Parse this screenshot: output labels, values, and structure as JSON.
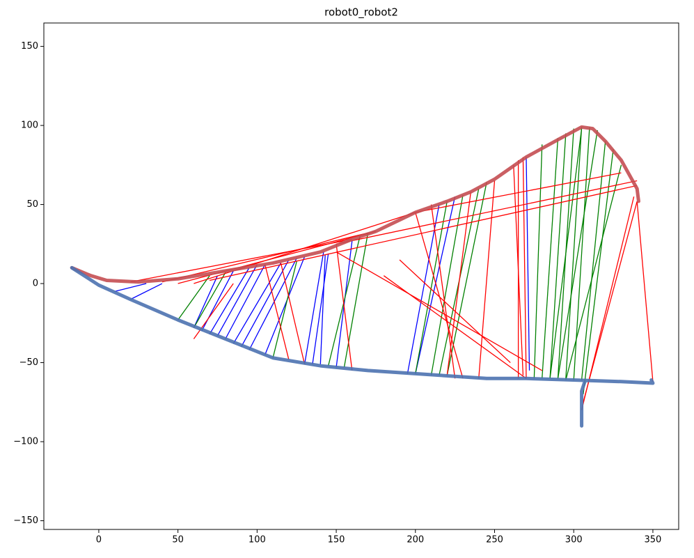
{
  "chart_data": {
    "type": "line",
    "title": "robot0_robot2",
    "xlim": [
      -34.7,
      366.3
    ],
    "ylim": [
      -155.5,
      164.8
    ],
    "xticks": [
      0,
      50,
      100,
      150,
      200,
      250,
      300,
      350
    ],
    "yticks": [
      {
        "value": -150,
        "label": "−150"
      },
      {
        "value": -100,
        "label": "−100"
      },
      {
        "value": -50,
        "label": "−50"
      },
      0,
      50,
      100,
      150
    ],
    "segments": [
      {
        "color": "#0000ff",
        "x0": [
          10,
          20,
          60,
          65,
          70,
          75,
          80,
          85,
          90,
          95,
          105,
          130,
          135,
          140,
          150,
          195,
          200,
          272
        ],
        "y0": [
          -5,
          -10,
          -28,
          -30,
          -32,
          -33,
          -35,
          -38,
          -40,
          -42,
          -45,
          -51,
          -51,
          -51,
          -53,
          -57,
          -57,
          -55
        ],
        "x1": [
          30,
          40,
          75,
          85,
          95,
          100,
          105,
          115,
          120,
          125,
          130,
          142,
          145,
          143,
          160,
          215,
          225,
          270
        ],
        "y1": [
          0,
          0,
          5,
          8,
          10,
          12,
          12,
          13,
          15,
          16,
          17,
          20,
          19,
          18,
          27,
          50,
          55,
          80
        ]
      },
      {
        "color": "#008000",
        "x0": [
          50,
          60,
          110,
          145,
          155,
          200,
          210,
          215,
          220,
          275,
          280,
          285,
          290,
          295,
          300,
          305,
          306,
          285,
          290,
          295
        ],
        "y0": [
          -23,
          -28,
          -47,
          -52,
          -53,
          -57,
          -58,
          -58,
          -58,
          -60,
          -60,
          -60,
          -60,
          -60,
          -61,
          -61,
          -70,
          -60,
          -60,
          -61
        ],
        "x1": [
          70,
          80,
          125,
          165,
          170,
          220,
          230,
          240,
          245,
          280,
          290,
          295,
          300,
          305,
          310,
          320,
          325,
          305,
          315,
          330
        ],
        "y1": [
          5,
          7,
          14,
          30,
          32,
          52,
          56,
          60,
          64,
          88,
          92,
          95,
          98,
          99,
          99,
          90,
          85,
          98,
          97,
          75
        ]
      },
      {
        "color": "#ff0000",
        "x0": [
          20,
          40,
          50,
          60,
          70,
          150,
          160,
          120,
          130,
          225,
          230,
          220,
          240,
          265,
          268,
          270,
          180,
          150,
          340,
          338,
          340,
          190,
          85,
          200
        ],
        "y0": [
          1,
          1,
          0,
          0,
          2,
          25,
          -55,
          -48,
          -51,
          -60,
          -60,
          -58,
          -60,
          -60,
          -58,
          -60,
          5,
          20,
          52,
          55,
          52,
          15,
          0,
          45
        ],
        "x1": [
          160,
          170,
          175,
          200,
          340,
          340,
          150,
          105,
          115,
          210,
          200,
          235,
          250,
          265,
          262,
          268,
          270,
          280,
          350,
          305,
          306,
          260,
          60,
          330
        ],
        "y1": [
          28,
          32,
          33,
          45,
          62,
          65,
          25,
          12,
          13,
          50,
          45,
          58,
          65,
          78,
          75,
          80,
          -60,
          -55,
          -62,
          -80,
          -75,
          -50,
          -35,
          70
        ]
      }
    ],
    "series": [
      {
        "name": "robot0",
        "color": "#c44e52",
        "x": [
          -17,
          -5,
          5,
          25,
          50,
          80,
          110,
          140,
          160,
          175,
          200,
          220,
          235,
          250,
          270,
          290,
          305,
          312,
          320,
          330,
          340,
          341
        ],
        "y": [
          10,
          5,
          2,
          1,
          3,
          8,
          13,
          20,
          28,
          33,
          45,
          52,
          58,
          66,
          80,
          91,
          99,
          98,
          90,
          78,
          60,
          52
        ]
      },
      {
        "name": "robot2",
        "color": "#4c72b0",
        "x": [
          -17,
          0,
          20,
          50,
          80,
          110,
          140,
          170,
          200,
          245,
          270,
          300,
          330,
          350,
          349,
          null,
          305,
          305,
          307
        ],
        "y": [
          10,
          -1,
          -10,
          -23,
          -35,
          -47,
          -52,
          -55,
          -57,
          -60,
          -60,
          -61,
          -62,
          -63,
          -61,
          null,
          -90,
          -68,
          -62
        ]
      }
    ]
  }
}
